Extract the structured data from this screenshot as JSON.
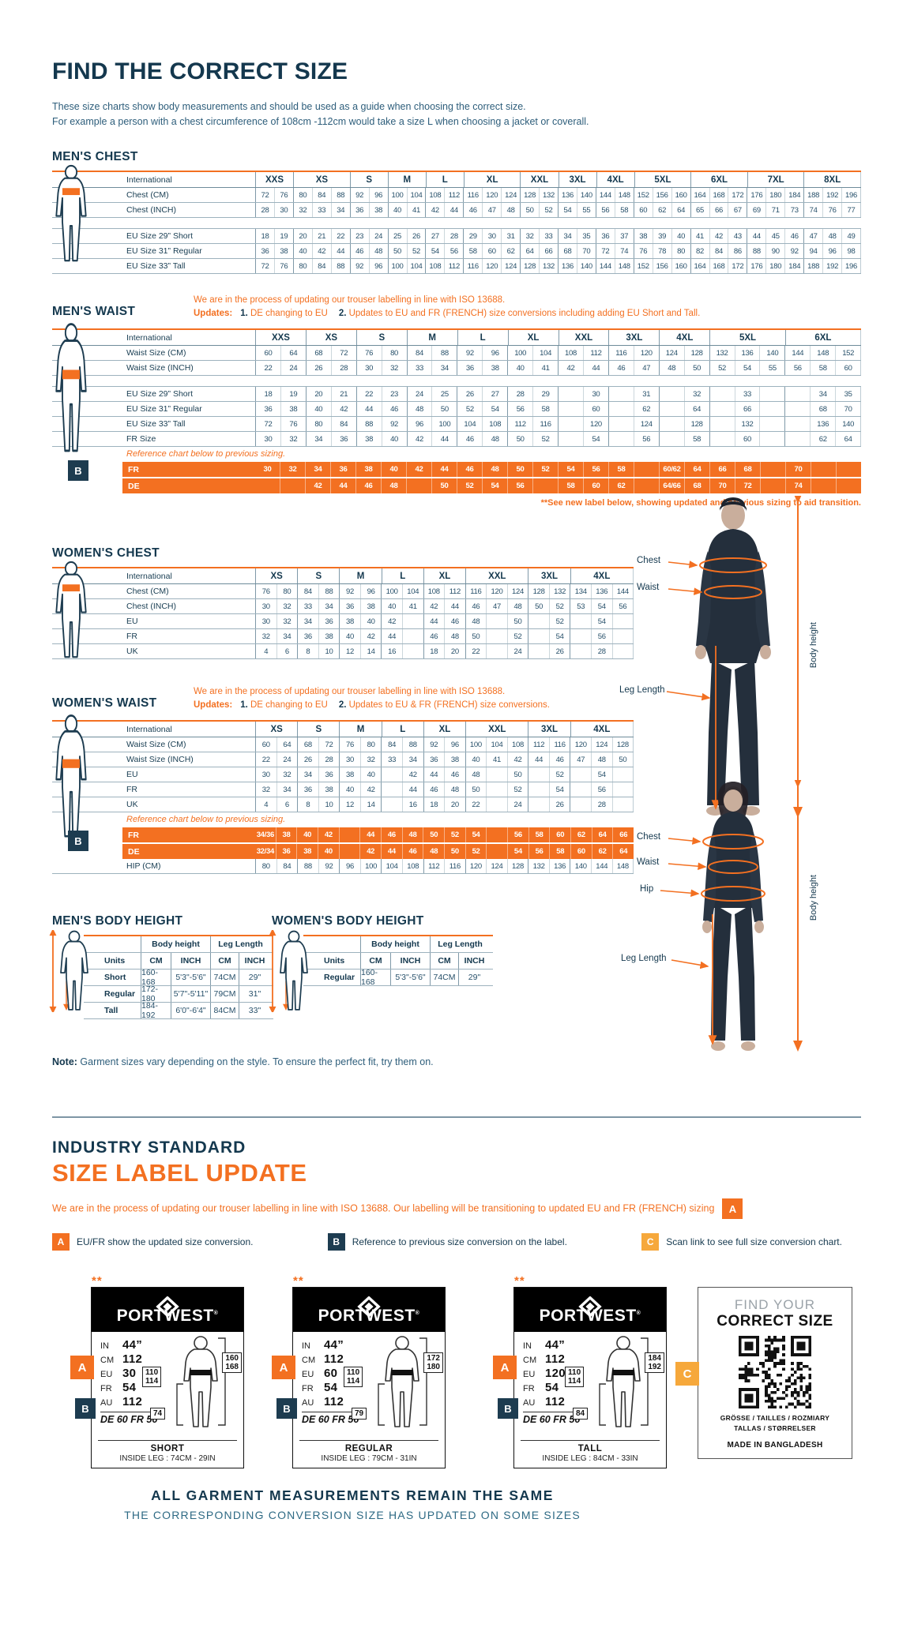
{
  "page": {
    "title": "FIND THE CORRECT SIZE",
    "intro_line1": "These size charts show body measurements and should be used as a guide when choosing the correct size.",
    "intro_line2": "For example a person with a chest circumference of 108cm -112cm would take a size L when choosing a jacket or coverall.",
    "note_prefix": "Note:",
    "note_text": " Garment sizes vary depending on the style. To ensure the perfect fit, try them on."
  },
  "mens_chest": {
    "heading": "MEN'S CHEST",
    "corner": "International",
    "sizes": [
      "XXS",
      "XS",
      "S",
      "M",
      "L",
      "XL",
      "XXL",
      "3XL",
      "4XL",
      "5XL",
      "6XL",
      "7XL",
      "8XL"
    ],
    "spans": [
      2,
      3,
      2,
      2,
      2,
      3,
      2,
      2,
      2,
      3,
      3,
      3,
      3
    ],
    "rows": [
      {
        "label": "Chest (CM)",
        "type": "vals",
        "cells": [
          "72",
          "76",
          "80",
          "84",
          "88",
          "92",
          "96",
          "100",
          "104",
          "108",
          "112",
          "116",
          "120",
          "124",
          "128",
          "132",
          "136",
          "140",
          "144",
          "148",
          "152",
          "156",
          "160",
          "164",
          "168",
          "172",
          "176",
          "180",
          "184",
          "188",
          "192",
          "196"
        ]
      },
      {
        "label": "Chest (INCH)",
        "type": "vals",
        "cells": [
          "28",
          "30",
          "32",
          "33",
          "34",
          "36",
          "38",
          "40",
          "41",
          "42",
          "44",
          "46",
          "47",
          "48",
          "50",
          "52",
          "54",
          "55",
          "56",
          "58",
          "60",
          "62",
          "64",
          "65",
          "66",
          "67",
          "69",
          "71",
          "73",
          "74",
          "76",
          "77"
        ]
      },
      {
        "type": "gap"
      },
      {
        "label": "EU Size 29” Short",
        "type": "vals",
        "cells": [
          "18",
          "19",
          "20",
          "21",
          "22",
          "23",
          "24",
          "25",
          "26",
          "27",
          "28",
          "29",
          "30",
          "31",
          "32",
          "33",
          "34",
          "35",
          "36",
          "37",
          "38",
          "39",
          "40",
          "41",
          "42",
          "43",
          "44",
          "45",
          "46",
          "47",
          "48",
          "49"
        ]
      },
      {
        "label": "EU Size 31” Regular",
        "type": "vals",
        "cells": [
          "36",
          "38",
          "40",
          "42",
          "44",
          "46",
          "48",
          "50",
          "52",
          "54",
          "56",
          "58",
          "60",
          "62",
          "64",
          "66",
          "68",
          "70",
          "72",
          "74",
          "76",
          "78",
          "80",
          "82",
          "84",
          "86",
          "88",
          "90",
          "92",
          "94",
          "96",
          "98"
        ]
      },
      {
        "label": "EU Size 33” Tall",
        "type": "vals",
        "cells": [
          "72",
          "76",
          "80",
          "84",
          "88",
          "92",
          "96",
          "100",
          "104",
          "108",
          "112",
          "116",
          "120",
          "124",
          "128",
          "132",
          "136",
          "140",
          "144",
          "148",
          "152",
          "156",
          "160",
          "164",
          "168",
          "172",
          "176",
          "180",
          "184",
          "188",
          "192",
          "196"
        ]
      }
    ]
  },
  "mens_waist": {
    "heading": "MEN'S WAIST",
    "iso_note": "We are in the process of updating our trouser labelling in line with ISO 13688.",
    "updates_label": "Updates:",
    "update1_num": "1.",
    "update1": " DE changing to EU",
    "update2_num": "2.",
    "update2": " Updates to EU and FR (FRENCH) size conversions including adding EU Short and Tall.",
    "corner": "International",
    "sizes": [
      "XXS",
      "XS",
      "S",
      "M",
      "L",
      "XL",
      "XXL",
      "3XL",
      "4XL",
      "5XL",
      "6XL"
    ],
    "spans": [
      2,
      2,
      2,
      2,
      2,
      2,
      2,
      2,
      2,
      3,
      3
    ],
    "side_badge": "B",
    "footnote": "**See new label below, showing updated and previous sizing to aid transition.",
    "rows": [
      {
        "label": "Waist Size (CM)",
        "type": "vals",
        "cells": [
          "60",
          "64",
          "68",
          "72",
          "76",
          "80",
          "84",
          "88",
          "92",
          "96",
          "100",
          "104",
          "108",
          "112",
          "116",
          "120",
          "124",
          "128",
          "132",
          "136",
          "140",
          "144",
          "148",
          "152"
        ]
      },
      {
        "label": "Waist Size (INCH)",
        "type": "vals",
        "cells": [
          "22",
          "24",
          "26",
          "28",
          "30",
          "32",
          "33",
          "34",
          "36",
          "38",
          "40",
          "41",
          "42",
          "44",
          "46",
          "47",
          "48",
          "50",
          "52",
          "54",
          "55",
          "56",
          "58",
          "60"
        ]
      },
      {
        "type": "gap"
      },
      {
        "label": "EU Size 29” Short",
        "type": "vals",
        "cells": [
          "18",
          "19",
          "20",
          "21",
          "22",
          "23",
          "24",
          "25",
          "26",
          "27",
          "28",
          "29",
          "",
          "30",
          "",
          "31",
          "",
          "32",
          "",
          "33",
          "",
          "",
          "34",
          "35"
        ]
      },
      {
        "label": "EU Size 31” Regular",
        "type": "vals",
        "cells": [
          "36",
          "38",
          "40",
          "42",
          "44",
          "46",
          "48",
          "50",
          "52",
          "54",
          "56",
          "58",
          "",
          "60",
          "",
          "62",
          "",
          "64",
          "",
          "66",
          "",
          "",
          "68",
          "70"
        ]
      },
      {
        "label": "EU Size 33” Tall",
        "type": "vals",
        "cells": [
          "72",
          "76",
          "80",
          "84",
          "88",
          "92",
          "96",
          "100",
          "104",
          "108",
          "112",
          "116",
          "",
          "120",
          "",
          "124",
          "",
          "128",
          "",
          "132",
          "",
          "",
          "136",
          "140"
        ]
      },
      {
        "label": "FR Size",
        "type": "vals",
        "cells": [
          "30",
          "32",
          "34",
          "36",
          "38",
          "40",
          "42",
          "44",
          "46",
          "48",
          "50",
          "52",
          "",
          "54",
          "",
          "56",
          "",
          "58",
          "",
          "60",
          "",
          "",
          "62",
          "64"
        ]
      },
      {
        "type": "note",
        "text": "Reference chart below to previous sizing."
      },
      {
        "label": "FR",
        "type": "orange",
        "cells": [
          "30",
          "32",
          "34",
          "36",
          "38",
          "40",
          "42",
          "44",
          "46",
          "48",
          "50",
          "52",
          "54",
          "56",
          "58",
          "",
          "60/62",
          "64",
          "66",
          "68",
          "",
          "70",
          "",
          ""
        ]
      },
      {
        "label": "DE",
        "type": "orange",
        "cells": [
          "",
          "",
          "42",
          "44",
          "46",
          "48",
          "",
          "50",
          "52",
          "54",
          "56",
          "",
          "58",
          "60",
          "62",
          "",
          "64/66",
          "68",
          "70",
          "72",
          "",
          "74",
          "",
          ""
        ]
      }
    ]
  },
  "womens_chest": {
    "heading": "WOMEN'S CHEST",
    "corner": "International",
    "sizes": [
      "XS",
      "S",
      "M",
      "L",
      "XL",
      "XXL",
      "3XL",
      "4XL"
    ],
    "spans": [
      2,
      2,
      2,
      2,
      2,
      3,
      2,
      3
    ],
    "rows": [
      {
        "label": "Chest (CM)",
        "type": "vals",
        "cells": [
          "76",
          "80",
          "84",
          "88",
          "92",
          "96",
          "100",
          "104",
          "108",
          "112",
          "116",
          "120",
          "124",
          "128",
          "132",
          "134",
          "136",
          "144"
        ]
      },
      {
        "label": "Chest (INCH)",
        "type": "vals",
        "cells": [
          "30",
          "32",
          "33",
          "34",
          "36",
          "38",
          "40",
          "41",
          "42",
          "44",
          "46",
          "47",
          "48",
          "50",
          "52",
          "53",
          "54",
          "56"
        ]
      },
      {
        "label": "EU",
        "type": "vals",
        "cells": [
          "30",
          "32",
          "34",
          "36",
          "38",
          "40",
          "42",
          "",
          "44",
          "46",
          "48",
          "",
          "50",
          "",
          "52",
          "",
          "54",
          ""
        ]
      },
      {
        "label": "FR",
        "type": "vals",
        "cells": [
          "32",
          "34",
          "36",
          "38",
          "40",
          "42",
          "44",
          "",
          "46",
          "48",
          "50",
          "",
          "52",
          "",
          "54",
          "",
          "56",
          ""
        ]
      },
      {
        "label": "UK",
        "type": "vals",
        "cells": [
          "4",
          "6",
          "8",
          "10",
          "12",
          "14",
          "16",
          "",
          "18",
          "20",
          "22",
          "",
          "24",
          "",
          "26",
          "",
          "28",
          ""
        ]
      }
    ]
  },
  "womens_waist": {
    "heading": "WOMEN'S WAIST",
    "iso_note": "We are in the process of updating our trouser labelling in line with ISO 13688.",
    "updates_label": "Updates:",
    "update1_num": "1.",
    "update1": " DE changing to EU",
    "update2_num": "2.",
    "update2": " Updates to EU & FR (FRENCH) size conversions.",
    "corner": "International",
    "sizes": [
      "XS",
      "S",
      "M",
      "L",
      "XL",
      "XXL",
      "3XL",
      "4XL"
    ],
    "spans": [
      2,
      2,
      2,
      2,
      2,
      3,
      2,
      3
    ],
    "side_badge": "B",
    "rows": [
      {
        "label": "Waist Size (CM)",
        "type": "vals",
        "cells": [
          "60",
          "64",
          "68",
          "72",
          "76",
          "80",
          "84",
          "88",
          "92",
          "96",
          "100",
          "104",
          "108",
          "112",
          "116",
          "120",
          "124",
          "128"
        ]
      },
      {
        "label": "Waist Size (INCH)",
        "type": "vals",
        "cells": [
          "22",
          "24",
          "26",
          "28",
          "30",
          "32",
          "33",
          "34",
          "36",
          "38",
          "40",
          "41",
          "42",
          "44",
          "46",
          "47",
          "48",
          "50"
        ]
      },
      {
        "label": "EU",
        "type": "vals",
        "cells": [
          "30",
          "32",
          "34",
          "36",
          "38",
          "40",
          "",
          "42",
          "44",
          "46",
          "48",
          "",
          "50",
          "",
          "52",
          "",
          "54",
          ""
        ]
      },
      {
        "label": "FR",
        "type": "vals",
        "cells": [
          "32",
          "34",
          "36",
          "38",
          "40",
          "42",
          "",
          "44",
          "46",
          "48",
          "50",
          "",
          "52",
          "",
          "54",
          "",
          "56",
          ""
        ]
      },
      {
        "label": "UK",
        "type": "vals",
        "cells": [
          "4",
          "6",
          "8",
          "10",
          "12",
          "14",
          "",
          "16",
          "18",
          "20",
          "22",
          "",
          "24",
          "",
          "26",
          "",
          "28",
          ""
        ]
      },
      {
        "type": "note",
        "text": "Reference chart below to previous sizing."
      },
      {
        "label": "FR",
        "type": "orange",
        "cells": [
          "34/36",
          "38",
          "40",
          "42",
          "",
          "44",
          "46",
          "48",
          "50",
          "52",
          "54",
          "",
          "56",
          "58",
          "60",
          "62",
          "64",
          "66"
        ]
      },
      {
        "label": "DE",
        "type": "orange",
        "cells": [
          "32/34",
          "36",
          "38",
          "40",
          "",
          "42",
          "44",
          "46",
          "48",
          "50",
          "52",
          "",
          "54",
          "56",
          "58",
          "60",
          "62",
          "64"
        ]
      },
      {
        "label": "HIP (CM)",
        "type": "vals",
        "cells": [
          "80",
          "84",
          "88",
          "92",
          "96",
          "100",
          "104",
          "108",
          "112",
          "116",
          "120",
          "124",
          "128",
          "132",
          "136",
          "140",
          "144",
          "148"
        ]
      }
    ]
  },
  "mens_body_height": {
    "heading": "MEN'S BODY HEIGHT",
    "group1": "Body height",
    "group2": "Leg Length",
    "sub": [
      "Units",
      "CM",
      "INCH",
      "CM",
      "INCH"
    ],
    "rows": [
      {
        "label": "Short",
        "values": [
          "160-168",
          "5'3\"-5'6\"",
          "74CM",
          "29\""
        ]
      },
      {
        "label": "Regular",
        "values": [
          "172-180",
          "5'7\"-5'11\"",
          "79CM",
          "31\""
        ]
      },
      {
        "label": "Tall",
        "values": [
          "184-192",
          "6'0\"-6'4\"",
          "84CM",
          "33\""
        ]
      }
    ]
  },
  "womens_body_height": {
    "heading": "WOMEN'S BODY HEIGHT",
    "group1": "Body height",
    "group2": "Leg Length",
    "sub": [
      "Units",
      "CM",
      "INCH",
      "CM",
      "INCH"
    ],
    "rows": [
      {
        "label": "Regular",
        "values": [
          "160-168",
          "5'3\"-5'6\"",
          "74CM",
          "29\""
        ]
      }
    ]
  },
  "man_figure": {
    "chest": "Chest",
    "waist": "Waist",
    "leg": "Leg Length",
    "height": "Body height"
  },
  "woman_figure": {
    "chest": "Chest",
    "waist": "Waist",
    "hip": "Hip",
    "leg": "Leg Length",
    "height": "Body height"
  },
  "industry": {
    "heading_top": "INDUSTRY STANDARD",
    "heading_main": "SIZE LABEL UPDATE",
    "para": "We are in the process of updating our trouser labelling in line with ISO 13688. Our labelling will be transitioning to updated EU and FR (FRENCH) sizing",
    "para_badge": "A",
    "legend": [
      {
        "badge": "A",
        "color": "#F37021",
        "text": "EU/FR show the updated size conversion."
      },
      {
        "badge": "B",
        "color": "#1d3c50",
        "text": "Reference to previous size conversion on the label."
      },
      {
        "badge": "C",
        "color": "#F6A83B",
        "text": "Scan link to see full size conversion chart."
      }
    ]
  },
  "cards": [
    {
      "stars": "**",
      "brand": "PORTWEST",
      "reg": "®",
      "badge_a": "A",
      "badge_b": "B",
      "fields": [
        {
          "k": "IN",
          "v": "44”"
        },
        {
          "k": "CM",
          "v": "112"
        },
        {
          "k": "EU",
          "v": "30"
        },
        {
          "k": "FR",
          "v": "54"
        },
        {
          "k": "AU",
          "v": "112"
        }
      ],
      "prev": "DE 60 FR 56",
      "waist_box": "110 114",
      "height_box": "160 168",
      "leg_box": "74",
      "name": "SHORT",
      "inside_leg": "INSIDE LEG : 74CM - 29IN"
    },
    {
      "stars": "**",
      "brand": "PORTWEST",
      "reg": "®",
      "badge_a": "A",
      "badge_b": "B",
      "fields": [
        {
          "k": "IN",
          "v": "44”"
        },
        {
          "k": "CM",
          "v": "112"
        },
        {
          "k": "EU",
          "v": "60"
        },
        {
          "k": "FR",
          "v": "54"
        },
        {
          "k": "AU",
          "v": "112"
        }
      ],
      "prev": "DE 60 FR 56",
      "waist_box": "110 114",
      "height_box": "172 180",
      "leg_box": "79",
      "name": "REGULAR",
      "inside_leg": "INSIDE LEG : 79CM - 31IN"
    },
    {
      "stars": "**",
      "brand": "PORTWEST",
      "reg": "®",
      "badge_a": "A",
      "badge_b": "B",
      "fields": [
        {
          "k": "IN",
          "v": "44”"
        },
        {
          "k": "CM",
          "v": "112"
        },
        {
          "k": "EU",
          "v": "120"
        },
        {
          "k": "FR",
          "v": "54"
        },
        {
          "k": "AU",
          "v": "112"
        }
      ],
      "prev": "DE 60 FR 56",
      "waist_box": "110 114",
      "height_box": "184 192",
      "leg_box": "84",
      "name": "TALL",
      "inside_leg": "INSIDE LEG : 84CM - 33IN"
    }
  ],
  "qr_card": {
    "title1": "FIND YOUR",
    "title2": "CORRECT SIZE",
    "badge": "C",
    "lang1": "GRÖSSE / TAILLES / ROZMIARY",
    "lang2": "TALLAS  / STØRRELSER",
    "made": "MADE IN BANGLADESH"
  },
  "footer": {
    "line1": "ALL GARMENT MEASUREMENTS REMAIN THE SAME",
    "line2": "THE CORRESPONDING CONVERSION SIZE HAS UPDATED ON SOME SIZES"
  }
}
